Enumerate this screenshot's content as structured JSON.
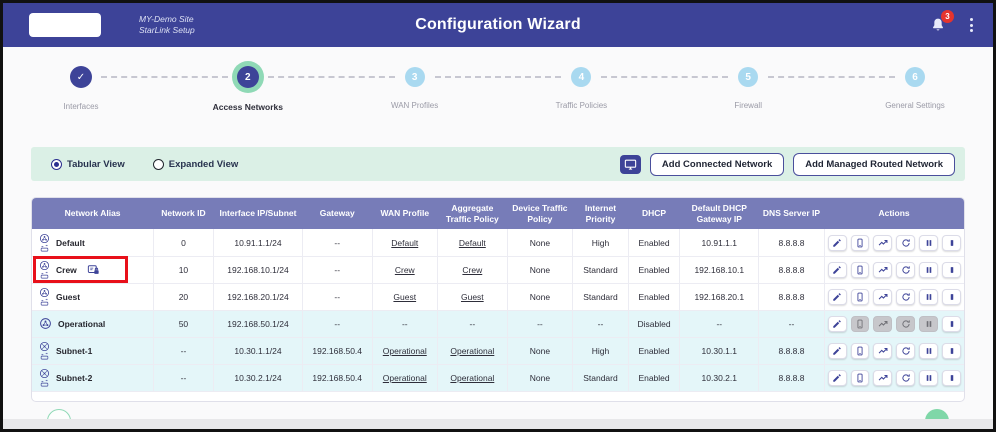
{
  "header": {
    "site_name": "MY-Demo Site",
    "site_sub": "StarLink Setup",
    "title": "Configuration Wizard",
    "notification_count": "3"
  },
  "stepper": {
    "steps": [
      {
        "number": "1",
        "label": "Interfaces",
        "state": "completed"
      },
      {
        "number": "2",
        "label": "Access Networks",
        "state": "active"
      },
      {
        "number": "3",
        "label": "WAN Profiles",
        "state": "upcoming"
      },
      {
        "number": "4",
        "label": "Traffic Policies",
        "state": "upcoming"
      },
      {
        "number": "5",
        "label": "Firewall",
        "state": "upcoming"
      },
      {
        "number": "6",
        "label": "General Settings",
        "state": "upcoming"
      }
    ]
  },
  "toolbar": {
    "view_options": [
      {
        "label": "Tabular View",
        "selected": true
      },
      {
        "label": "Expanded View",
        "selected": false
      }
    ],
    "add_connected_label": "Add Connected Network",
    "add_managed_label": "Add Managed Routed Network"
  },
  "table": {
    "columns": [
      "Network Alias",
      "Network ID",
      "Interface IP/Subnet",
      "Gateway",
      "WAN Profile",
      "Aggregate Traffic Policy",
      "Device Traffic Policy",
      "Internet Priority",
      "DHCP",
      "Default DHCP Gateway IP",
      "DNS Server IP",
      "Actions"
    ],
    "action_icons": [
      "edit",
      "devices",
      "chart",
      "restart",
      "pause",
      "stop"
    ],
    "rows": [
      {
        "alias": "Default",
        "icon": "network-bridge",
        "secured": false,
        "highlighted": false,
        "network_id": "0",
        "interface_ip_subnet": "10.91.1.1/24",
        "gateway": "--",
        "wan_profile": "Default",
        "aggregate_traffic_policy": "Default",
        "device_traffic_policy": "None",
        "internet_priority": "High",
        "dhcp": "Enabled",
        "default_dhcp_gateway_ip": "10.91.1.1",
        "dns_server_ip": "8.8.8.8",
        "alt": false,
        "disabled_actions": []
      },
      {
        "alias": "Crew",
        "icon": "network-bridge",
        "secured": true,
        "highlighted": true,
        "network_id": "10",
        "interface_ip_subnet": "192.168.10.1/24",
        "gateway": "--",
        "wan_profile": "Crew",
        "aggregate_traffic_policy": "Crew",
        "device_traffic_policy": "None",
        "internet_priority": "Standard",
        "dhcp": "Enabled",
        "default_dhcp_gateway_ip": "192.168.10.1",
        "dns_server_ip": "8.8.8.8",
        "alt": false,
        "disabled_actions": []
      },
      {
        "alias": "Guest",
        "icon": "network-bridge",
        "secured": false,
        "highlighted": false,
        "network_id": "20",
        "interface_ip_subnet": "192.168.20.1/24",
        "gateway": "--",
        "wan_profile": "Guest",
        "aggregate_traffic_policy": "Guest",
        "device_traffic_policy": "None",
        "internet_priority": "Standard",
        "dhcp": "Enabled",
        "default_dhcp_gateway_ip": "192.168.20.1",
        "dns_server_ip": "8.8.8.8",
        "alt": false,
        "disabled_actions": []
      },
      {
        "alias": "Operational",
        "icon": "network",
        "secured": false,
        "highlighted": false,
        "network_id": "50",
        "interface_ip_subnet": "192.168.50.1/24",
        "gateway": "--",
        "wan_profile": "--",
        "aggregate_traffic_policy": "--",
        "device_traffic_policy": "--",
        "internet_priority": "--",
        "dhcp": "Disabled",
        "default_dhcp_gateway_ip": "--",
        "dns_server_ip": "--",
        "alt": true,
        "disabled_actions": [
          "devices",
          "chart",
          "restart",
          "pause"
        ]
      },
      {
        "alias": "Subnet-1",
        "icon": "subnet-bridge",
        "secured": false,
        "highlighted": false,
        "network_id": "--",
        "interface_ip_subnet": "10.30.1.1/24",
        "gateway": "192.168.50.4",
        "wan_profile": "Operational",
        "aggregate_traffic_policy": "Operational",
        "device_traffic_policy": "None",
        "internet_priority": "High",
        "dhcp": "Enabled",
        "default_dhcp_gateway_ip": "10.30.1.1",
        "dns_server_ip": "8.8.8.8",
        "alt": true,
        "disabled_actions": []
      },
      {
        "alias": "Subnet-2",
        "icon": "subnet-bridge",
        "secured": false,
        "highlighted": false,
        "network_id": "--",
        "interface_ip_subnet": "10.30.2.1/24",
        "gateway": "192.168.50.4",
        "wan_profile": "Operational",
        "aggregate_traffic_policy": "Operational",
        "device_traffic_policy": "None",
        "internet_priority": "Standard",
        "dhcp": "Enabled",
        "default_dhcp_gateway_ip": "10.30.2.1",
        "dns_server_ip": "8.8.8.8",
        "alt": true,
        "disabled_actions": []
      }
    ]
  },
  "footer": {
    "back_icon": "arrow-left",
    "next_icon": "arrow-right"
  },
  "colors": {
    "header_bg": "#3d4398",
    "table_header_bg": "#777cb8",
    "active_step_ring": "#8fd9b6",
    "alt_row_bg": "#e4f6f9",
    "toolbar_bg": "#dbf0e6",
    "notification_badge": "#e5342e",
    "annotation_box": "#e8101a",
    "next_button": "#7fd7a8",
    "accent": "#3d4398"
  }
}
